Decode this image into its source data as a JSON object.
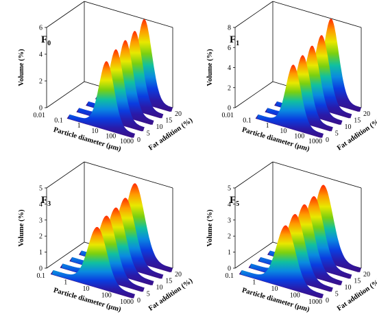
{
  "colors": {
    "ribbon_gradient": [
      "#3a1088",
      "#2a1aa8",
      "#0a3ce0",
      "#0a8ae0",
      "#10c0a0",
      "#7ad010",
      "#e8e800",
      "#ff9a00",
      "#ff2a00"
    ],
    "box_line": "#000000"
  },
  "chart_data": [
    {
      "type": "area",
      "title": "F",
      "title_sub": "0",
      "xlabel": "Particle diameter (µm)",
      "ylabel": "Volume (%)",
      "zlabel": "Fat addition (%)",
      "x_scale": "log",
      "x_ticks": [
        "0.01",
        "0.1",
        "1",
        "10",
        "100",
        "1000"
      ],
      "y_ticks": [
        "0",
        "2",
        "4",
        "6"
      ],
      "y_range": [
        0,
        6
      ],
      "z_ticks": [
        "0",
        "5",
        "10",
        "15",
        "20"
      ],
      "z": [
        0,
        5,
        10,
        15,
        20
      ],
      "series": [
        {
          "name": "0",
          "peak_diameter": 25,
          "peak_volume": 4.8
        },
        {
          "name": "5",
          "peak_diameter": 25,
          "peak_volume": 5.2
        },
        {
          "name": "10",
          "peak_diameter": 25,
          "peak_volume": 5.4
        },
        {
          "name": "15",
          "peak_diameter": 25,
          "peak_volume": 5.6
        },
        {
          "name": "20",
          "peak_diameter": 25,
          "peak_volume": 6.0
        }
      ]
    },
    {
      "type": "area",
      "title": "F",
      "title_sub": "1",
      "xlabel": "Particle diameter (µm)",
      "ylabel": "Volume (%)",
      "zlabel": "Fat addition (%)",
      "x_scale": "log",
      "x_ticks": [
        "0.01",
        "0.1",
        "1",
        "10",
        "100",
        "1000"
      ],
      "y_ticks": [
        "0",
        "2",
        "4",
        "6",
        "8"
      ],
      "y_range": [
        0,
        8
      ],
      "z_ticks": [
        "0",
        "5",
        "10",
        "15",
        "20"
      ],
      "z": [
        0,
        5,
        10,
        15,
        20
      ],
      "series": [
        {
          "name": "0",
          "peak_diameter": 20,
          "peak_volume": 6.0
        },
        {
          "name": "5",
          "peak_diameter": 20,
          "peak_volume": 6.3
        },
        {
          "name": "10",
          "peak_diameter": 20,
          "peak_volume": 6.6
        },
        {
          "name": "15",
          "peak_diameter": 20,
          "peak_volume": 7.0
        },
        {
          "name": "20",
          "peak_diameter": 20,
          "peak_volume": 8.0
        }
      ]
    },
    {
      "type": "area",
      "title": "F",
      "title_sub": "3",
      "xlabel": "Particle diameter (µm)",
      "ylabel": "Volume (%)",
      "zlabel": "Fat addition (%)",
      "x_scale": "log",
      "x_ticks": [
        "0.1",
        "1",
        "10",
        "100",
        "1000"
      ],
      "y_ticks": [
        "0",
        "1",
        "2",
        "3",
        "4",
        "5"
      ],
      "y_range": [
        0,
        5
      ],
      "z_ticks": [
        "0",
        "5",
        "10",
        "15",
        "20"
      ],
      "z": [
        0,
        5,
        10,
        15,
        20
      ],
      "series": [
        {
          "name": "0",
          "peak_diameter": 20,
          "peak_volume": 3.5
        },
        {
          "name": "5",
          "peak_diameter": 20,
          "peak_volume": 3.8
        },
        {
          "name": "10",
          "peak_diameter": 20,
          "peak_volume": 3.9
        },
        {
          "name": "15",
          "peak_diameter": 20,
          "peak_volume": 4.1
        },
        {
          "name": "20",
          "peak_diameter": 20,
          "peak_volume": 4.6
        }
      ]
    },
    {
      "type": "area",
      "title": "F",
      "title_sub": "5",
      "xlabel": "Particle diameter (µm)",
      "ylabel": "Volume (%)",
      "zlabel": "Fat addition (%)",
      "x_scale": "log",
      "x_ticks": [
        "0.1",
        "1",
        "10",
        "100",
        "1000"
      ],
      "y_ticks": [
        "0",
        "1",
        "2",
        "3",
        "4",
        "5"
      ],
      "y_range": [
        0,
        5
      ],
      "z_ticks": [
        "0",
        "5",
        "10",
        "15",
        "20"
      ],
      "z": [
        0,
        5,
        10,
        15,
        20
      ],
      "series": [
        {
          "name": "0",
          "peak_diameter": 20,
          "peak_volume": 3.6
        },
        {
          "name": "5",
          "peak_diameter": 20,
          "peak_volume": 3.9
        },
        {
          "name": "10",
          "peak_diameter": 20,
          "peak_volume": 4.1
        },
        {
          "name": "15",
          "peak_diameter": 20,
          "peak_volume": 4.2
        },
        {
          "name": "20",
          "peak_diameter": 20,
          "peak_volume": 4.5
        }
      ]
    }
  ]
}
